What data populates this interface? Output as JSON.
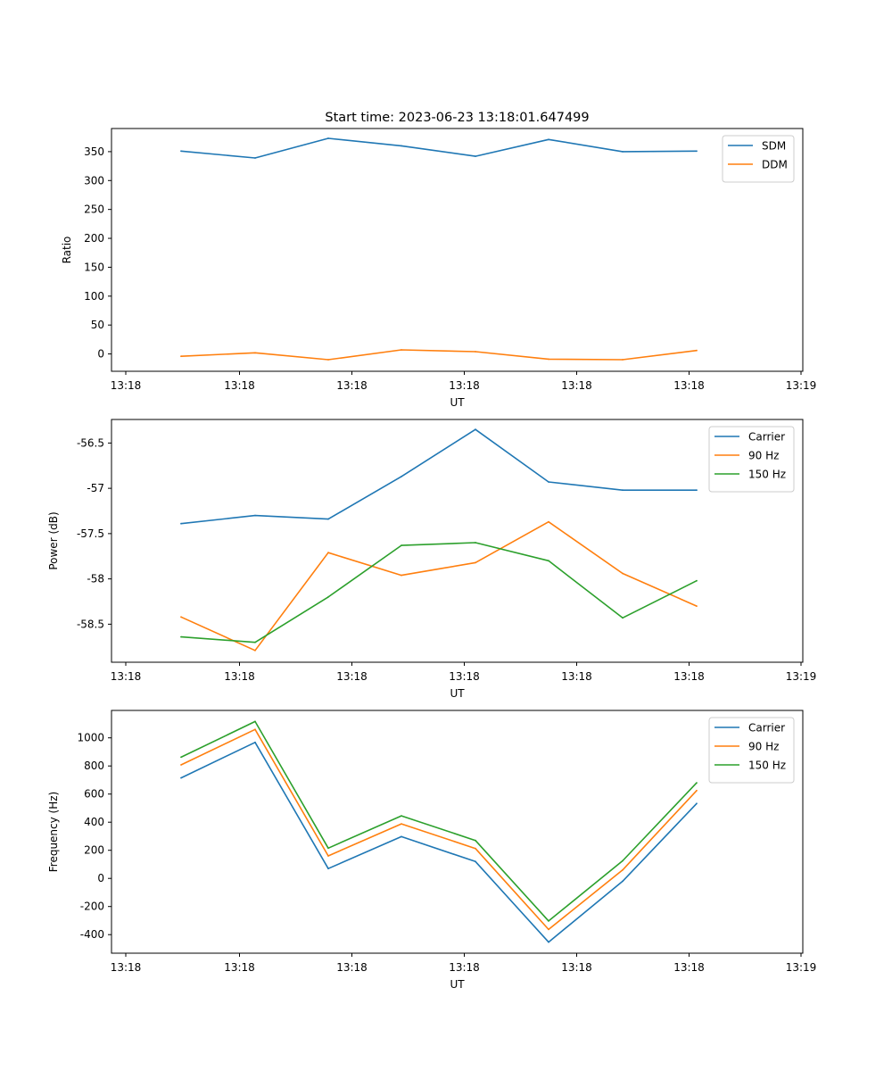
{
  "figure": {
    "title": "Start time: 2023-06-23 13:18:01.647499"
  },
  "chart_data": [
    {
      "type": "line",
      "title": "Start time: 2023-06-23 13:18:01.647499",
      "xlabel": "UT",
      "ylabel": "Ratio",
      "x_ticks": [
        "13:18",
        "13:18",
        "13:18",
        "13:18",
        "13:18",
        "13:18",
        "13:19"
      ],
      "y_ticks": [
        0,
        50,
        100,
        150,
        200,
        250,
        300,
        350
      ],
      "ylim": [
        -30,
        390
      ],
      "legend": "top-right",
      "series": [
        {
          "name": "SDM",
          "color": "#1f77b4",
          "values": [
            351,
            339,
            373,
            360,
            342,
            371,
            350,
            351
          ]
        },
        {
          "name": "DDM",
          "color": "#ff7f0e",
          "values": [
            -4,
            2,
            -10,
            7,
            4,
            -9,
            -10,
            6
          ]
        }
      ]
    },
    {
      "type": "line",
      "title": "",
      "xlabel": "UT",
      "ylabel": "Power (dB)",
      "x_ticks": [
        "13:18",
        "13:18",
        "13:18",
        "13:18",
        "13:18",
        "13:18",
        "13:19"
      ],
      "y_ticks": [
        -56.5,
        -57.0,
        -57.5,
        -58.0,
        -58.5
      ],
      "ylim": [
        -58.92,
        -56.24
      ],
      "legend": "top-right",
      "series": [
        {
          "name": "Carrier",
          "color": "#1f77b4",
          "values": [
            -57.39,
            -57.3,
            -57.34,
            -56.87,
            -56.35,
            -56.93,
            -57.02,
            -57.02
          ]
        },
        {
          "name": "90 Hz",
          "color": "#ff7f0e",
          "values": [
            -58.42,
            -58.79,
            -57.71,
            -57.96,
            -57.82,
            -57.37,
            -57.94,
            -58.3
          ]
        },
        {
          "name": "150 Hz",
          "color": "#2ca02c",
          "values": [
            -58.64,
            -58.7,
            -58.2,
            -57.63,
            -57.6,
            -57.8,
            -58.43,
            -58.02
          ]
        }
      ]
    },
    {
      "type": "line",
      "title": "",
      "xlabel": "UT",
      "ylabel": "Frequency (Hz)",
      "x_ticks": [
        "13:18",
        "13:18",
        "13:18",
        "13:18",
        "13:18",
        "13:18",
        "13:19"
      ],
      "y_ticks": [
        -400,
        -200,
        0,
        200,
        400,
        600,
        800,
        1000
      ],
      "ylim": [
        -532,
        1195
      ],
      "legend": "top-right",
      "series": [
        {
          "name": "Carrier",
          "color": "#1f77b4",
          "values": [
            715,
            968,
            70,
            297,
            120,
            -453,
            -20,
            533
          ]
        },
        {
          "name": "90 Hz",
          "color": "#ff7f0e",
          "values": [
            808,
            1060,
            160,
            388,
            213,
            -363,
            60,
            625
          ]
        },
        {
          "name": "150 Hz",
          "color": "#2ca02c",
          "values": [
            862,
            1116,
            215,
            445,
            270,
            -303,
            125,
            680
          ]
        }
      ]
    }
  ]
}
